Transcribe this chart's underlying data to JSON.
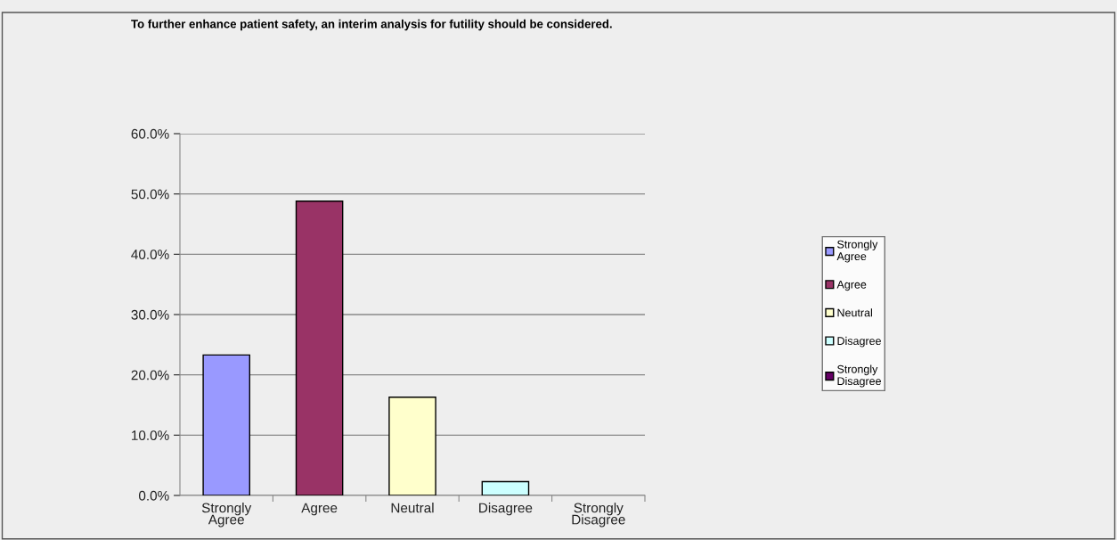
{
  "chart_data": {
    "type": "bar",
    "title": "To further enhance patient safety, an interim analysis for futility should be considered.",
    "categories": [
      "Strongly\nAgree",
      "Agree",
      "Neutral",
      "Disagree",
      "Strongly\nDisagree"
    ],
    "series": [
      {
        "name": "Strongly\nAgree",
        "color": "#9999ff",
        "values": [
          23.3,
          null,
          null,
          null,
          null
        ]
      },
      {
        "name": "Agree",
        "color": "#993366",
        "values": [
          null,
          48.8,
          null,
          null,
          null
        ]
      },
      {
        "name": "Neutral",
        "color": "#ffffcc",
        "values": [
          null,
          null,
          16.3,
          null,
          null
        ]
      },
      {
        "name": "Disagree",
        "color": "#ccffff",
        "values": [
          null,
          null,
          null,
          2.3,
          null
        ]
      },
      {
        "name": "Strongly\nDisagree",
        "color": "#660066",
        "values": [
          null,
          null,
          null,
          null,
          0
        ]
      }
    ],
    "ylim": [
      0,
      60
    ],
    "yticks": [
      {
        "value": 0,
        "label": "0.0%"
      },
      {
        "value": 10,
        "label": "10.0%"
      },
      {
        "value": 20,
        "label": "20.0%"
      },
      {
        "value": 30,
        "label": "30.0%"
      },
      {
        "value": 40,
        "label": "40.0%"
      },
      {
        "value": 50,
        "label": "50.0%"
      },
      {
        "value": 60,
        "label": "60.0%"
      }
    ],
    "grid": "y",
    "legend": "right"
  }
}
